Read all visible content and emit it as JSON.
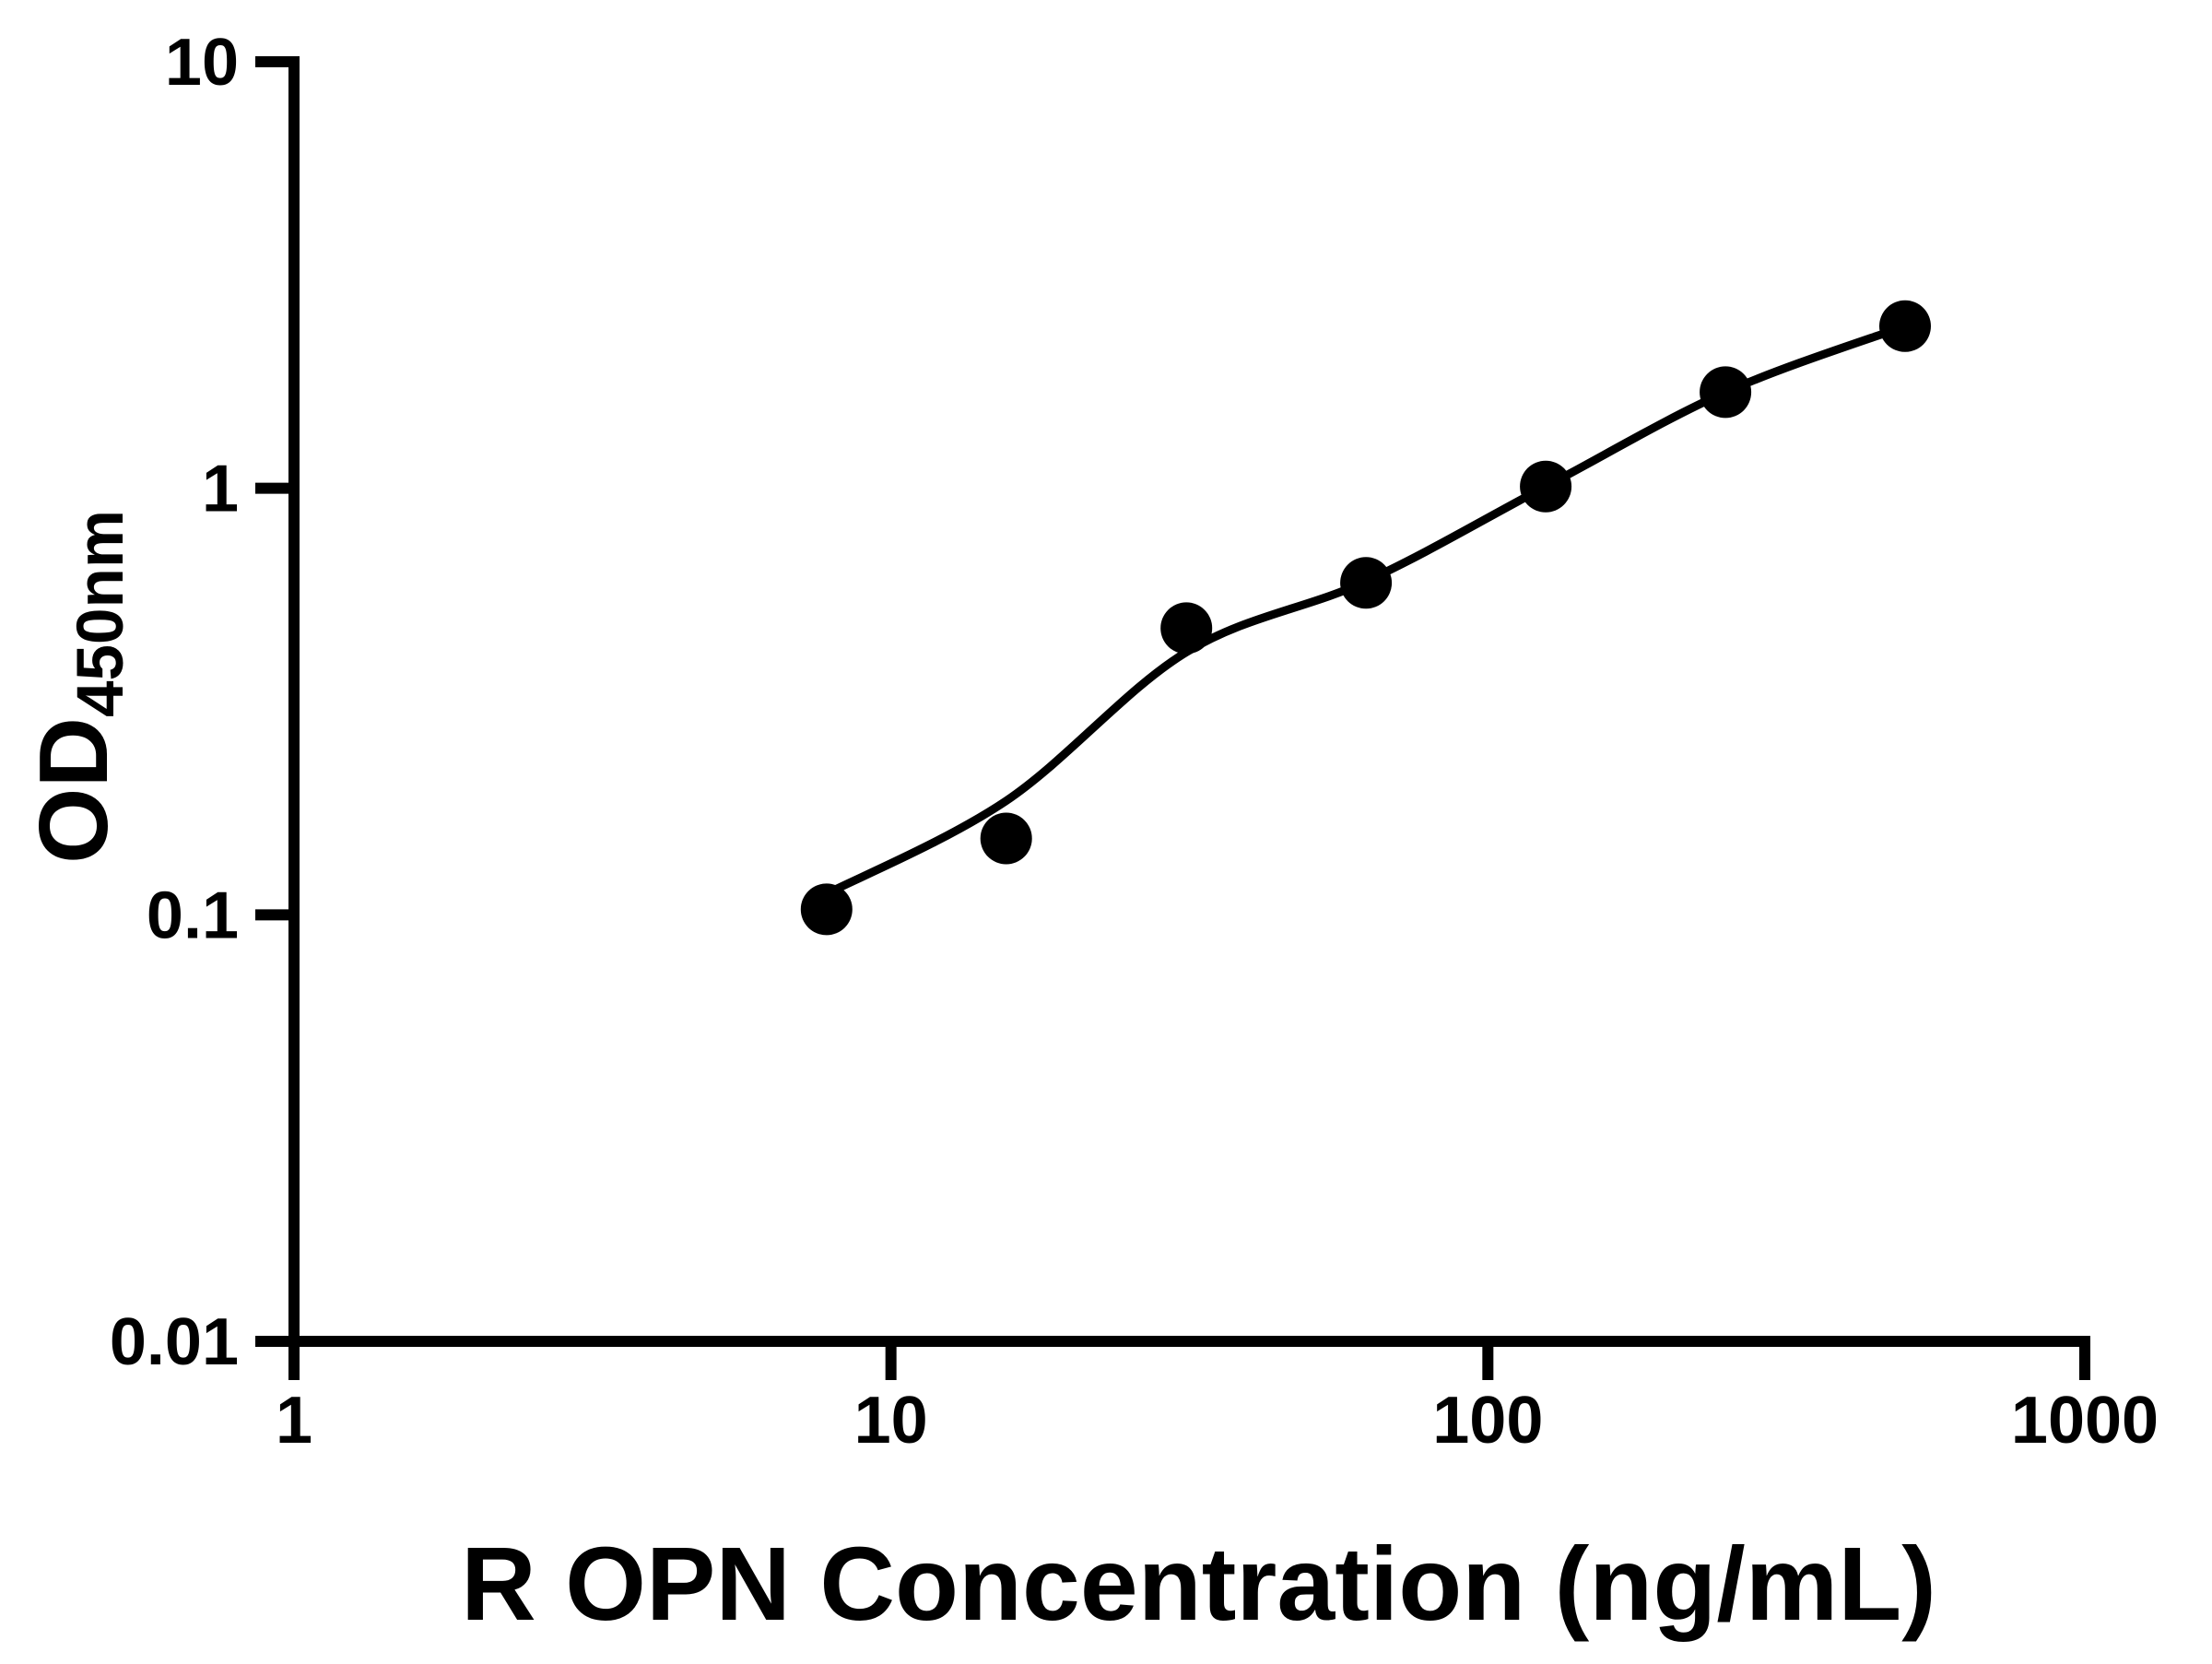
{
  "figure": {
    "background_color": "#ffffff",
    "ink_color": "#000000"
  },
  "chart_data": {
    "type": "scatter",
    "title": "",
    "xlabel": "R OPN Concentration (ng/mL)",
    "ylabel": "OD450nm",
    "ylabel_main": "OD",
    "ylabel_subscript": "450nm",
    "x_scale": "log",
    "y_scale": "log",
    "xlim": [
      1,
      1000
    ],
    "ylim": [
      0.01,
      10
    ],
    "grid": false,
    "legend": "none",
    "x_ticks": [
      {
        "value": 1,
        "label": "1"
      },
      {
        "value": 10,
        "label": "10"
      },
      {
        "value": 100,
        "label": "100"
      },
      {
        "value": 1000,
        "label": "1000"
      }
    ],
    "y_ticks": [
      {
        "value": 10,
        "label": "10"
      },
      {
        "value": 1,
        "label": "1"
      },
      {
        "value": 0.1,
        "label": "0.1"
      },
      {
        "value": 0.01,
        "label": "0.01"
      }
    ],
    "series": [
      {
        "name": "standard-curve-points",
        "marker": "filled-circle",
        "points": [
          {
            "x": 7.8,
            "y": 0.103
          },
          {
            "x": 15.6,
            "y": 0.151
          },
          {
            "x": 31.25,
            "y": 0.47
          },
          {
            "x": 62.5,
            "y": 0.6
          },
          {
            "x": 125,
            "y": 1.01
          },
          {
            "x": 250,
            "y": 1.68
          },
          {
            "x": 500,
            "y": 2.4
          }
        ]
      },
      {
        "name": "fitted-curve",
        "marker": "none",
        "points": [
          {
            "x": 7.8,
            "y": 0.112
          },
          {
            "x": 15.6,
            "y": 0.185
          },
          {
            "x": 31.25,
            "y": 0.413
          },
          {
            "x": 62.5,
            "y": 0.605
          },
          {
            "x": 125,
            "y": 1.01
          },
          {
            "x": 250,
            "y": 1.68
          },
          {
            "x": 500,
            "y": 2.4
          }
        ]
      }
    ]
  }
}
